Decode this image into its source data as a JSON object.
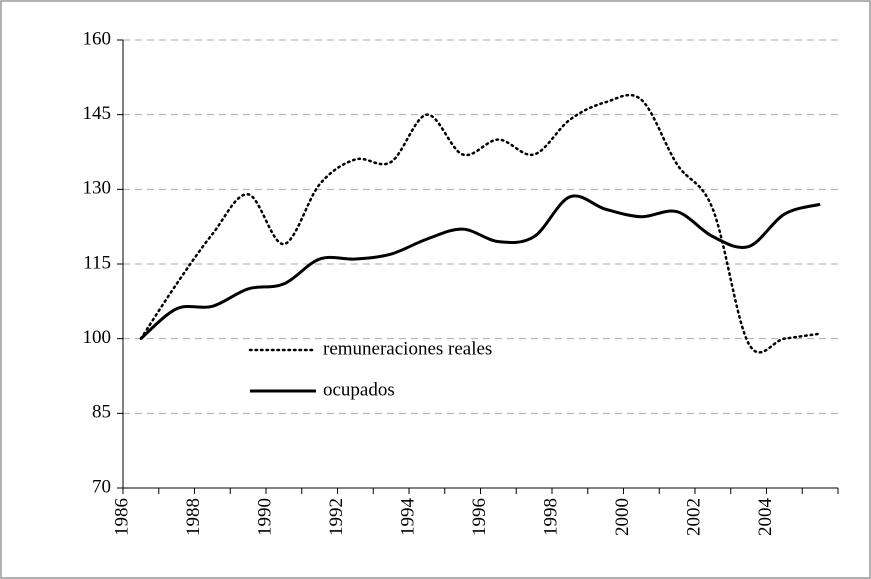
{
  "chart_data": {
    "type": "line",
    "categories": [
      "1986",
      null,
      "1988",
      null,
      "1990",
      null,
      "1992",
      null,
      "1994",
      null,
      "1996",
      null,
      "1998",
      null,
      "2000",
      null,
      "2002",
      null,
      "2004",
      null
    ],
    "series": [
      {
        "name": "remuneraciones reales",
        "color": "#000000",
        "line_style": "dotted",
        "values": [
          100,
          111,
          121,
          129,
          119,
          131,
          136,
          135.5,
          145,
          137,
          140,
          137,
          144,
          147.5,
          148,
          135,
          126,
          99,
          100,
          101
        ]
      },
      {
        "name": "ocupados",
        "color": "#000000",
        "line_style": "solid",
        "values": [
          100,
          106,
          106.5,
          110,
          111,
          116,
          116,
          117,
          120,
          122,
          119.5,
          120.5,
          128.5,
          126,
          124.5,
          125.5,
          120.5,
          118.5,
          125,
          127
        ]
      }
    ],
    "ylim": [
      70,
      160
    ],
    "yticks": [
      70,
      85,
      100,
      115,
      130,
      145,
      160
    ],
    "grid": true
  }
}
